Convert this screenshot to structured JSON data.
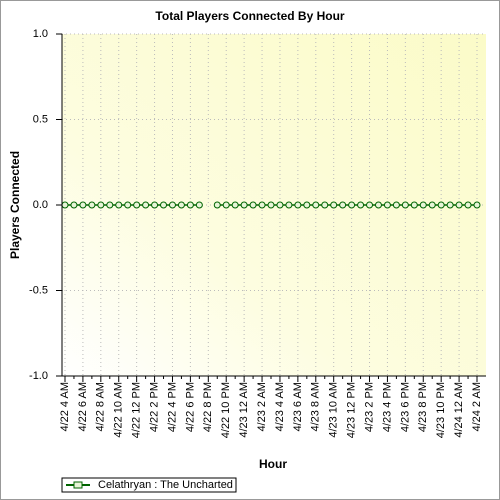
{
  "chart_data": {
    "type": "line",
    "title": "Total Players Connected By Hour",
    "x_label": "Hour",
    "y_label": "Players Connected",
    "categories": [
      "4/22 4 AM",
      null,
      "4/22 6 AM",
      null,
      "4/22 8 AM",
      null,
      "4/22 10 AM",
      null,
      "4/22 12 PM",
      null,
      "4/22 2 PM",
      null,
      "4/22 4 PM",
      null,
      "4/22 6 PM",
      null,
      "4/22 8 PM",
      null,
      "4/22 10 PM",
      null,
      "4/23 12 AM",
      null,
      "4/23 2 AM",
      null,
      "4/23 4 AM",
      null,
      "4/23 6 AM",
      null,
      "4/23 8 AM",
      null,
      "4/23 10 AM",
      null,
      "4/23 12 PM",
      null,
      "4/23 2 PM",
      null,
      "4/23 4 PM",
      null,
      "4/23 6 PM",
      null,
      "4/23 8 PM",
      null,
      "4/23 10 PM",
      null,
      "4/24 12 AM",
      null,
      "4/24 2 AM"
    ],
    "series": [
      {
        "name": "Celathryan : The Uncharted",
        "color": "#006400",
        "values": [
          0,
          0,
          0,
          0,
          0,
          0,
          0,
          0,
          0,
          0,
          0,
          0,
          0,
          0,
          0,
          0,
          null,
          0,
          0,
          0,
          0,
          0,
          0,
          0,
          0,
          0,
          0,
          0,
          0,
          0,
          0,
          0,
          0,
          0,
          0,
          0,
          0,
          0,
          0,
          0,
          0,
          0,
          0,
          0,
          0,
          0,
          0
        ]
      }
    ],
    "ylim": [
      -1,
      1
    ],
    "yticks": [
      {
        "value": -1,
        "label": "-1.0"
      },
      -0.5,
      {
        "value": 0,
        "label": "0.0"
      },
      0.5,
      {
        "value": 1,
        "label": "1.0"
      }
    ],
    "grid": true,
    "legend": "bottom-left"
  }
}
